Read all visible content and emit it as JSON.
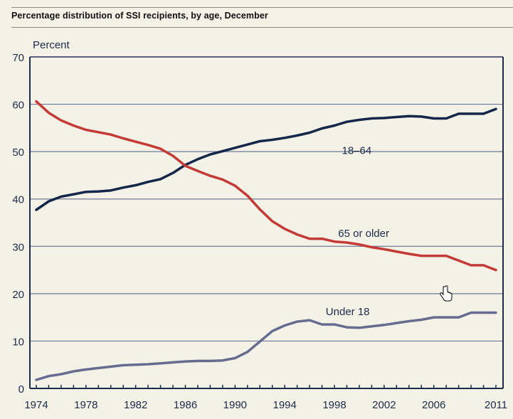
{
  "chart_data": {
    "type": "line",
    "title": "Percentage distribution of SSI recipients, by age, December",
    "ylabel": "Percent",
    "xlabel": "",
    "ylim": [
      0,
      70
    ],
    "xlim": [
      1974,
      2011
    ],
    "yticks": [
      0,
      10,
      20,
      30,
      40,
      50,
      60,
      70
    ],
    "xtick_labels": [
      "1974",
      "1978",
      "1982",
      "1986",
      "1990",
      "1994",
      "1998",
      "2002",
      "2006",
      "2011"
    ],
    "xtick_years": [
      1974,
      1978,
      1982,
      1986,
      1990,
      1994,
      1998,
      2002,
      2006,
      2011
    ],
    "grid": "horizontal",
    "legend": "inline labels",
    "x": [
      1974,
      1975,
      1976,
      1977,
      1978,
      1979,
      1980,
      1981,
      1982,
      1983,
      1984,
      1985,
      1986,
      1987,
      1988,
      1989,
      1990,
      1991,
      1992,
      1993,
      1994,
      1995,
      1996,
      1997,
      1998,
      1999,
      2000,
      2001,
      2002,
      2003,
      2004,
      2005,
      2006,
      2007,
      2008,
      2009,
      2010,
      2011
    ],
    "series": [
      {
        "name": "18–64",
        "color": "#14264a",
        "label_year": 1998.6,
        "label_value": 49.5,
        "values": [
          37.7,
          39.5,
          40.5,
          41.0,
          41.5,
          41.6,
          41.8,
          42.4,
          42.9,
          43.6,
          44.2,
          45.5,
          47.2,
          48.4,
          49.4,
          50.1,
          50.8,
          51.5,
          52.2,
          52.5,
          52.9,
          53.4,
          54.0,
          54.9,
          55.5,
          56.3,
          56.7,
          57.0,
          57.1,
          57.3,
          57.5,
          57.4,
          57.0,
          57.0,
          58.0,
          58.0,
          58.0,
          59.0
        ]
      },
      {
        "name": "65 or older",
        "color": "#c43a36",
        "label_year": 1998.3,
        "label_value": 32.0,
        "values": [
          60.6,
          58.2,
          56.6,
          55.5,
          54.6,
          54.1,
          53.6,
          52.8,
          52.1,
          51.4,
          50.6,
          49.1,
          47.0,
          45.9,
          44.9,
          44.1,
          42.8,
          40.7,
          37.8,
          35.3,
          33.7,
          32.5,
          31.6,
          31.6,
          31.0,
          30.8,
          30.4,
          29.8,
          29.4,
          28.9,
          28.4,
          28.0,
          28.0,
          28.0,
          27.0,
          26.0,
          26.0,
          25.0
        ]
      },
      {
        "name": "Under 18",
        "color": "#666b90",
        "label_year": 1997.3,
        "label_value": 15.5,
        "values": [
          1.8,
          2.6,
          3.0,
          3.6,
          4.0,
          4.3,
          4.6,
          4.9,
          5.0,
          5.1,
          5.3,
          5.5,
          5.7,
          5.8,
          5.8,
          5.9,
          6.4,
          7.7,
          9.9,
          12.1,
          13.3,
          14.1,
          14.4,
          13.5,
          13.5,
          12.9,
          12.8,
          13.1,
          13.4,
          13.8,
          14.2,
          14.5,
          15.0,
          15.0,
          15.0,
          16.0,
          16.0,
          16.0
        ]
      }
    ]
  },
  "cursor_icon": "hand-pointer-icon"
}
